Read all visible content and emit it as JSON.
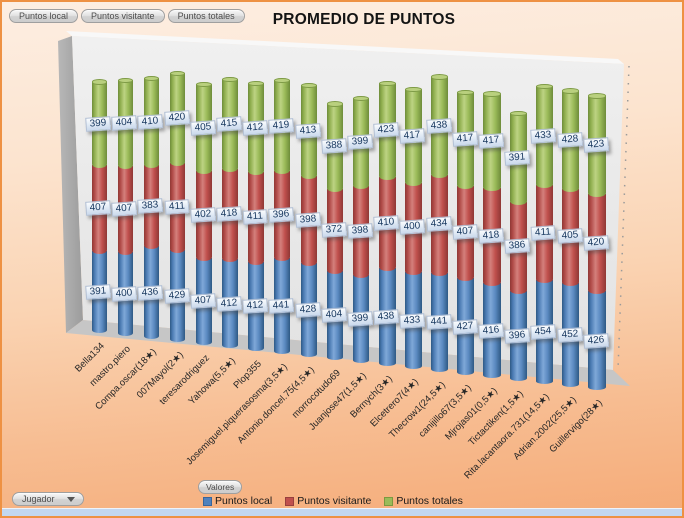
{
  "field_buttons": [
    "Puntos local",
    "Puntos visitante",
    "Puntos totales"
  ],
  "values_button": "Valores",
  "axis_button": "Jugador",
  "colors": {
    "window_border": "#EE9143",
    "series_blue": "#4F81BD",
    "series_red": "#C0504D",
    "series_green": "#9BBB59",
    "data_label_text": "#17375E",
    "bottom_strip": "#C3D7F0"
  },
  "chart_data": {
    "type": "bar",
    "subtype": "stacked-cylinder-3d",
    "title": "PROMEDIO DE PUNTOS",
    "xlabel": "",
    "ylabel": "",
    "grid": false,
    "data_labels": true,
    "legend_position": "bottom",
    "categories": [
      "Bella134",
      "mastro.piero",
      "Compa.oscar(18★)",
      "007Mayol(2★)",
      "teresarodriguez",
      "Yahowa(5,5★)",
      "Plop355",
      "Josemiguel.piquerasosma(3,5★)",
      "Antonio.doncel.75(4,5★)",
      "morrocotudo69",
      "Juanjose47(1,5★)",
      "Bernych(3★)",
      "Elcetrero7(4★)",
      "Thecrow1(24,5★)",
      "canijillo67(3,5★)",
      "Mjrojas01(0,5★)",
      "Tictactiken(1,5★)",
      "Rita.lacantaora.731(14,5★)",
      "Adrian.2002(25,5★)",
      "Guillervigo(28★)"
    ],
    "series": [
      {
        "name": "Puntos local",
        "color": "#4F81BD",
        "values": [
          391,
          400,
          436,
          429,
          407,
          412,
          412,
          441,
          428,
          404,
          399,
          438,
          433,
          441,
          427,
          416,
          396,
          454,
          452,
          426
        ]
      },
      {
        "name": "Puntos visitante",
        "color": "#C0504D",
        "values": [
          407,
          407,
          383,
          411,
          402,
          418,
          411,
          396,
          398,
          372,
          398,
          410,
          400,
          434,
          407,
          418,
          386,
          411,
          405,
          420
        ]
      },
      {
        "name": "Puntos totales",
        "color": "#9BBB59",
        "values": [
          399,
          404,
          410,
          420,
          405,
          415,
          412,
          419,
          413,
          388,
          399,
          423,
          417,
          438,
          417,
          417,
          391,
          433,
          428,
          423
        ]
      }
    ]
  }
}
